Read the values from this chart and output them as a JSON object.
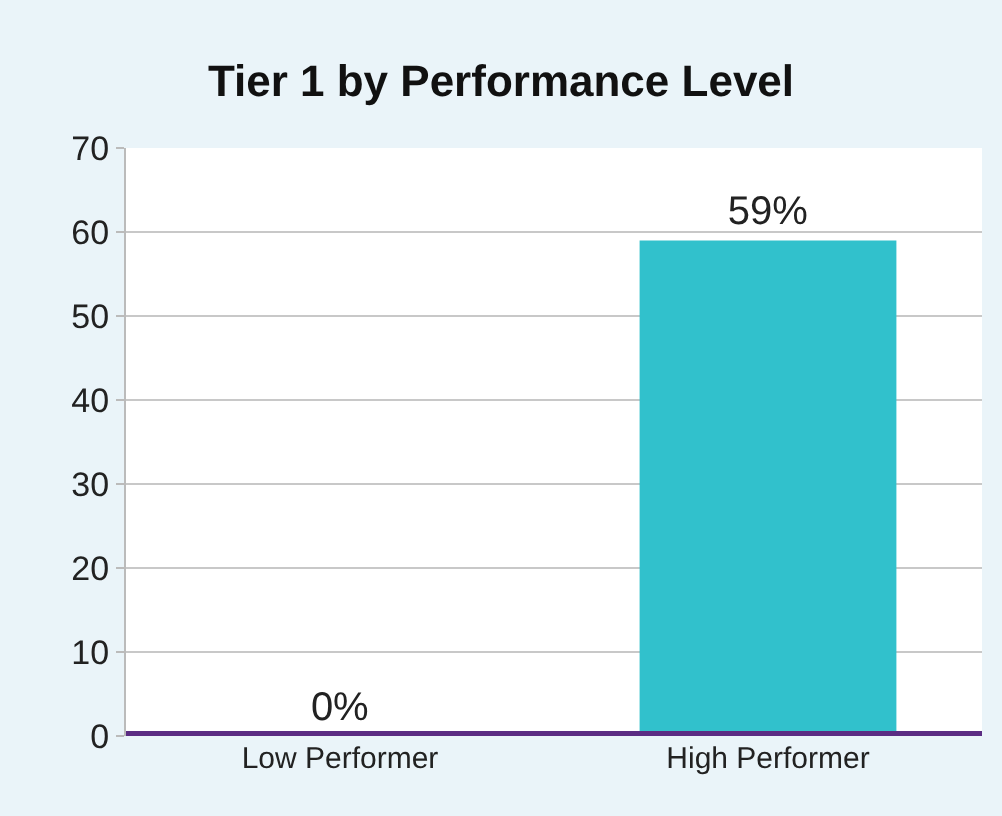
{
  "chart_data": {
    "type": "bar",
    "title": "Tier 1 by Performance Level",
    "categories": [
      "Low Performer",
      "High Performer"
    ],
    "values": [
      0,
      59
    ],
    "color": "#31c1cc",
    "value_labels": [
      "0%",
      "59%"
    ],
    "ylim": [
      0,
      70
    ],
    "yticks": [
      0,
      10,
      20,
      30,
      40,
      50,
      60,
      70
    ],
    "grid": "y",
    "legend": false
  }
}
